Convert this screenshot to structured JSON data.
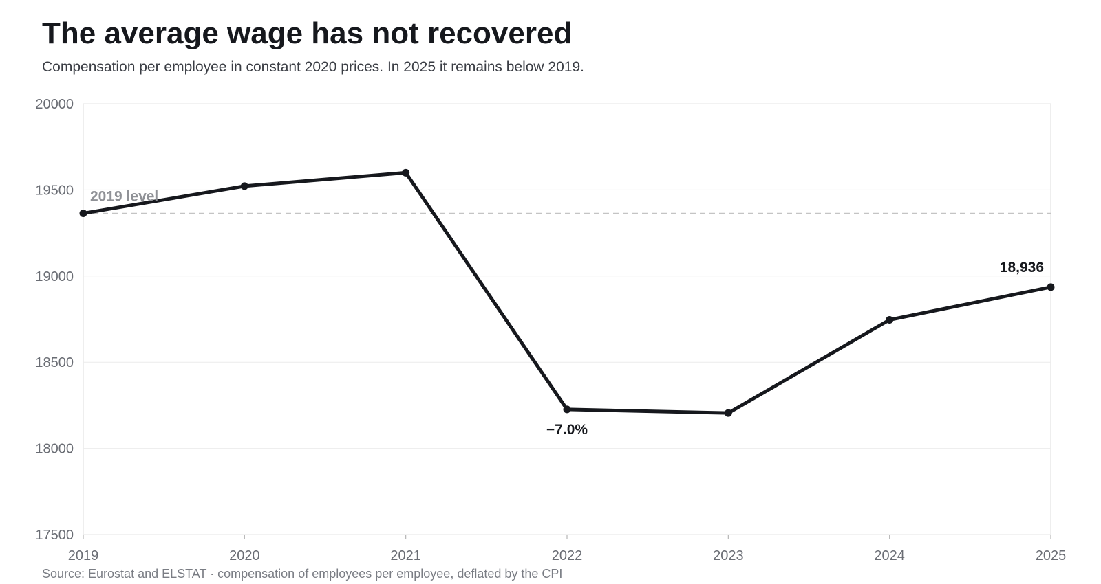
{
  "header": {
    "title": "The average wage has not recovered",
    "subtitle": "Compensation per employee in constant 2020 prices. In 2025 it remains below 2019."
  },
  "footer": {
    "source": "Source: Eurostat and ELSTAT · compensation of employees per employee, deflated by the CPI"
  },
  "colors": {
    "line": "#16181d",
    "grid": "#ececec",
    "reference": "#c4c4c4"
  },
  "chart_data": {
    "type": "line",
    "x": [
      2019,
      2020,
      2021,
      2022,
      2023,
      2024,
      2025
    ],
    "series": [
      {
        "values": [
          19364,
          19522,
          19600,
          18226,
          18205,
          18746,
          18936
        ]
      }
    ],
    "ylim": [
      17500,
      20000
    ],
    "yticks": [
      17500,
      18000,
      18500,
      19000,
      19500,
      20000
    ],
    "grid": true,
    "reference_line": {
      "value": 19364,
      "label": "2019 level",
      "style": "dashed"
    },
    "annotations": [
      {
        "x": 2022,
        "text": "−7.0%",
        "placement": "below"
      },
      {
        "x": 2025,
        "text": "18,936",
        "placement": "above"
      }
    ]
  }
}
